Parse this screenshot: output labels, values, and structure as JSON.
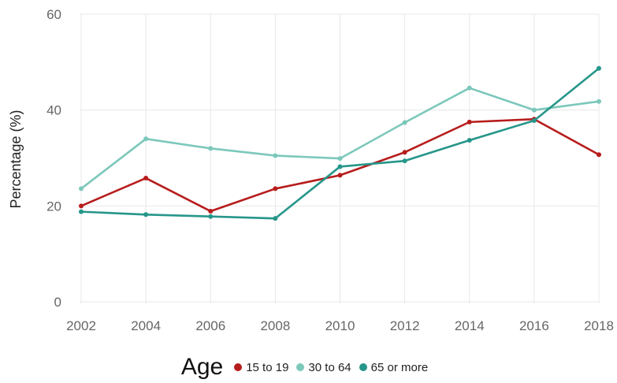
{
  "chart_data": {
    "type": "line",
    "x": [
      2002,
      2004,
      2006,
      2008,
      2010,
      2012,
      2014,
      2016,
      2018
    ],
    "ylabel": "Percentage (%)",
    "ylim": [
      0,
      60
    ],
    "yticks": [
      0,
      20,
      40,
      60
    ],
    "grid": true,
    "legend_title": "Age",
    "legend_position": "bottom",
    "series": [
      {
        "name": "15 to 19",
        "color": "#b71c1c",
        "values": [
          20.0,
          25.8,
          18.9,
          23.6,
          26.4,
          31.2,
          37.5,
          38.1,
          30.7
        ]
      },
      {
        "name": "30 to 64",
        "color": "#7cc8bb",
        "values": [
          23.6,
          34.0,
          32.0,
          30.5,
          29.9,
          37.4,
          44.6,
          40.0,
          41.8
        ]
      },
      {
        "name": "65 or more",
        "color": "#26968a",
        "values": [
          18.8,
          18.2,
          17.8,
          17.4,
          28.2,
          29.4,
          33.7,
          37.8,
          48.7
        ]
      }
    ]
  }
}
